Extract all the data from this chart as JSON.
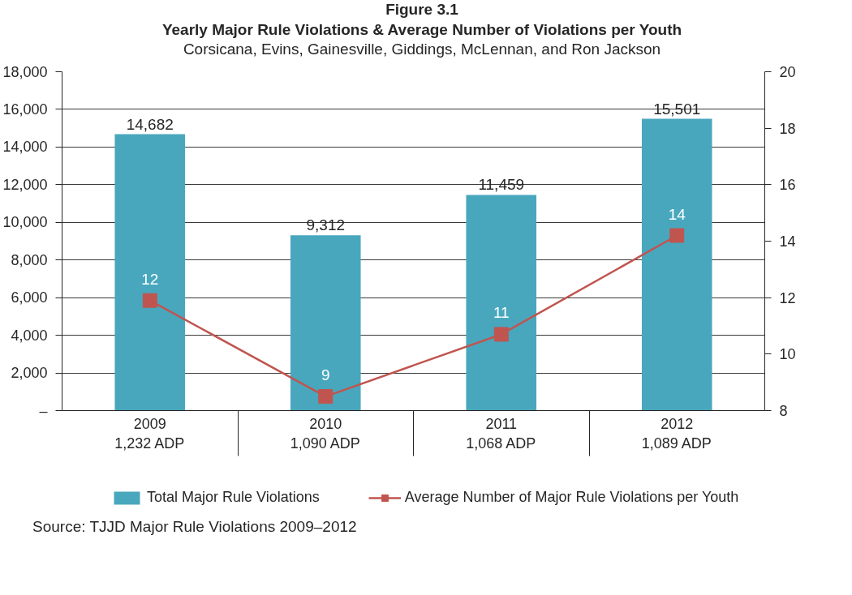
{
  "chart_data": {
    "type": "bar",
    "title": "Figure 3.1\nYearly Major Rule Violations & Average Number of Violations per Youth",
    "subtitle": "Corsicana, Evins, Gainesville, Giddings, McLennan, and Ron Jackson",
    "categories": [
      "2009\n1,232 ADP",
      "2010\n1,090 ADP",
      "2011\n1,068 ADP",
      "2012\n1,089 ADP"
    ],
    "series": [
      {
        "name": "Total Major Rule Violations",
        "color": "#48a7bd",
        "values": [
          14682,
          9312,
          11459,
          15501
        ],
        "value_labels": [
          "14,682",
          "9,312",
          "11,459",
          "15,501"
        ]
      },
      {
        "name": "Average Number of Major Rule Violations per Youth",
        "type": "line",
        "axis": "y2",
        "color": "#c0554f",
        "marker": "square",
        "line_style": "solid",
        "values": [
          11.9,
          8.5,
          10.7,
          14.2
        ],
        "value_labels": [
          "12",
          "9",
          "11",
          "14"
        ]
      }
    ],
    "ylim": [
      0,
      18000
    ],
    "yticks": [
      {
        "value": 0,
        "label": "–"
      },
      {
        "value": 2000,
        "label": "2,000"
      },
      {
        "value": 4000,
        "label": "4,000"
      },
      {
        "value": 6000,
        "label": "6,000"
      },
      {
        "value": 8000,
        "label": "8,000"
      },
      {
        "value": 10000,
        "label": "10,000"
      },
      {
        "value": 12000,
        "label": "12,000"
      },
      {
        "value": 14000,
        "label": "14,000"
      },
      {
        "value": 16000,
        "label": "16,000"
      },
      {
        "value": 18000,
        "label": "18,000"
      }
    ],
    "y2lim": [
      8,
      20
    ],
    "y2ticks": [
      8,
      10,
      12,
      14,
      16,
      18,
      20
    ],
    "grid": "y",
    "legend": "bottom",
    "annotations": [
      "Source: TJJD Major Rule Violations 2009–2012"
    ]
  }
}
